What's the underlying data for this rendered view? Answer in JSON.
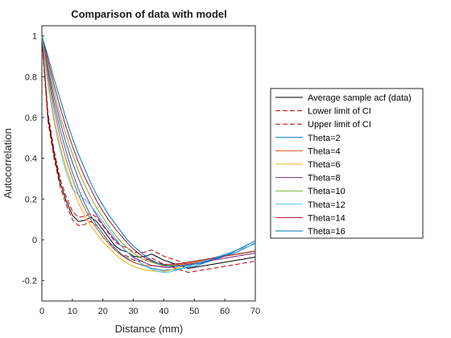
{
  "colors": {
    "data": "#000000",
    "ci": "#c00000",
    "theta2": "#0072BD",
    "theta4": "#D95319",
    "theta6": "#EDB120",
    "theta8": "#7E2F8E",
    "theta10": "#77AC30",
    "theta12": "#4DBEEE",
    "theta14": "#A2142F",
    "theta16": "#0072BD"
  },
  "chart_data": {
    "type": "line",
    "title": "Comparison of data with model",
    "xlabel": "Distance (mm)",
    "ylabel": "Autocorrelation",
    "xlim": [
      0,
      70
    ],
    "ylim": [
      -0.3,
      1.05
    ],
    "xticks": [
      0,
      10,
      20,
      30,
      40,
      50,
      60,
      70
    ],
    "yticks": [
      -0.2,
      0,
      0.2,
      0.4,
      0.6,
      0.8,
      1
    ],
    "ytick_labels": [
      "-0.2",
      "0",
      "0.2",
      "0.4",
      "0.6",
      "0.8",
      "1"
    ],
    "grid": false,
    "legend_position": "outside-right",
    "x": [
      0,
      2,
      4,
      6,
      8,
      10,
      12,
      14,
      16,
      18,
      20,
      22,
      24,
      26,
      28,
      30,
      32,
      34,
      36,
      38,
      40,
      42,
      44,
      46,
      48,
      50,
      52,
      54,
      56,
      58,
      60,
      62,
      64,
      66,
      68,
      70
    ],
    "series": [
      {
        "name": "Average sample acf (data)",
        "color_key": "data",
        "dash": "solid",
        "values": [
          1.0,
          0.6,
          0.42,
          0.28,
          0.19,
          0.12,
          0.09,
          0.095,
          0.11,
          0.09,
          0.05,
          0.01,
          -0.03,
          -0.05,
          -0.06,
          -0.08,
          -0.085,
          -0.08,
          -0.07,
          -0.085,
          -0.1,
          -0.11,
          -0.12,
          -0.13,
          -0.14,
          -0.135,
          -0.13,
          -0.125,
          -0.12,
          -0.115,
          -0.11,
          -0.105,
          -0.1,
          -0.095,
          -0.09,
          -0.085
        ]
      },
      {
        "name": "Lower limit of CI",
        "color_key": "ci",
        "dash": "dashed",
        "values": [
          0.98,
          0.58,
          0.4,
          0.26,
          0.17,
          0.1,
          0.07,
          0.075,
          0.09,
          0.07,
          0.03,
          -0.01,
          -0.05,
          -0.07,
          -0.08,
          -0.1,
          -0.105,
          -0.1,
          -0.09,
          -0.105,
          -0.12,
          -0.13,
          -0.14,
          -0.15,
          -0.16,
          -0.155,
          -0.15,
          -0.145,
          -0.14,
          -0.135,
          -0.13,
          -0.125,
          -0.12,
          -0.115,
          -0.11,
          -0.105
        ]
      },
      {
        "name": "Upper limit of CI",
        "color_key": "ci",
        "dash": "dashed",
        "values": [
          1.0,
          0.62,
          0.44,
          0.3,
          0.21,
          0.14,
          0.11,
          0.115,
          0.13,
          0.11,
          0.07,
          0.03,
          -0.01,
          -0.03,
          -0.04,
          -0.06,
          -0.065,
          -0.06,
          -0.05,
          -0.065,
          -0.08,
          -0.09,
          -0.1,
          -0.11,
          -0.12,
          -0.115,
          -0.11,
          -0.105,
          -0.1,
          -0.095,
          -0.09,
          -0.085,
          -0.08,
          -0.075,
          -0.07,
          -0.065
        ]
      },
      {
        "name": "Theta=2",
        "color_key": "theta2",
        "dash": "solid",
        "values": [
          1.0,
          0.82,
          0.67,
          0.54,
          0.43,
          0.33,
          0.25,
          0.18,
          0.12,
          0.07,
          0.03,
          -0.01,
          -0.04,
          -0.07,
          -0.09,
          -0.11,
          -0.12,
          -0.13,
          -0.14,
          -0.145,
          -0.15,
          -0.148,
          -0.145,
          -0.14,
          -0.135,
          -0.13,
          -0.12,
          -0.11,
          -0.1,
          -0.09,
          -0.08,
          -0.07,
          -0.06,
          -0.045,
          -0.03,
          -0.015
        ]
      },
      {
        "name": "Theta=4",
        "color_key": "theta4",
        "dash": "solid",
        "values": [
          1.0,
          0.8,
          0.64,
          0.5,
          0.39,
          0.3,
          0.22,
          0.155,
          0.1,
          0.055,
          0.015,
          -0.02,
          -0.05,
          -0.075,
          -0.095,
          -0.11,
          -0.12,
          -0.125,
          -0.128,
          -0.13,
          -0.13,
          -0.128,
          -0.125,
          -0.12,
          -0.115,
          -0.11,
          -0.105,
          -0.1,
          -0.09,
          -0.085,
          -0.08,
          -0.075,
          -0.07,
          -0.065,
          -0.06,
          -0.055
        ]
      },
      {
        "name": "Theta=6",
        "color_key": "theta6",
        "dash": "solid",
        "values": [
          1.0,
          0.78,
          0.6,
          0.46,
          0.35,
          0.26,
          0.18,
          0.12,
          0.07,
          0.03,
          -0.01,
          -0.04,
          -0.07,
          -0.095,
          -0.115,
          -0.13,
          -0.14,
          -0.148,
          -0.152,
          -0.155,
          -0.155,
          -0.15,
          -0.14,
          -0.13,
          -0.12,
          -0.11,
          -0.1,
          -0.095,
          -0.09,
          -0.085,
          -0.08,
          -0.075,
          -0.07,
          -0.065,
          -0.06,
          -0.055
        ]
      },
      {
        "name": "Theta=8",
        "color_key": "theta8",
        "dash": "solid",
        "values": [
          1.0,
          0.84,
          0.7,
          0.58,
          0.47,
          0.38,
          0.3,
          0.23,
          0.17,
          0.12,
          0.075,
          0.035,
          0.0,
          -0.03,
          -0.06,
          -0.085,
          -0.1,
          -0.115,
          -0.125,
          -0.13,
          -0.135,
          -0.135,
          -0.13,
          -0.125,
          -0.12,
          -0.115,
          -0.11,
          -0.105,
          -0.1,
          -0.095,
          -0.09,
          -0.085,
          -0.08,
          -0.075,
          -0.07,
          -0.065
        ]
      },
      {
        "name": "Theta=10",
        "color_key": "theta10",
        "dash": "solid",
        "values": [
          1.0,
          0.86,
          0.73,
          0.61,
          0.51,
          0.42,
          0.34,
          0.27,
          0.21,
          0.155,
          0.11,
          0.065,
          0.025,
          -0.01,
          -0.04,
          -0.065,
          -0.085,
          -0.1,
          -0.11,
          -0.12,
          -0.125,
          -0.125,
          -0.12,
          -0.115,
          -0.11,
          -0.105,
          -0.1,
          -0.095,
          -0.09,
          -0.085,
          -0.08,
          -0.075,
          -0.07,
          -0.065,
          -0.06,
          -0.055
        ]
      },
      {
        "name": "Theta=12",
        "color_key": "theta12",
        "dash": "solid",
        "values": [
          1.0,
          0.76,
          0.58,
          0.44,
          0.33,
          0.25,
          0.22,
          0.2,
          0.17,
          0.13,
          0.09,
          0.05,
          0.01,
          -0.03,
          -0.06,
          -0.09,
          -0.11,
          -0.13,
          -0.145,
          -0.155,
          -0.16,
          -0.158,
          -0.15,
          -0.14,
          -0.13,
          -0.12,
          -0.11,
          -0.1,
          -0.09,
          -0.08,
          -0.07,
          -0.06,
          -0.05,
          -0.04,
          -0.03,
          -0.02
        ]
      },
      {
        "name": "Theta=14",
        "color_key": "theta14",
        "dash": "solid",
        "values": [
          1.0,
          0.88,
          0.76,
          0.65,
          0.55,
          0.46,
          0.38,
          0.31,
          0.25,
          0.19,
          0.14,
          0.095,
          0.055,
          0.02,
          -0.015,
          -0.045,
          -0.07,
          -0.09,
          -0.105,
          -0.115,
          -0.12,
          -0.12,
          -0.118,
          -0.115,
          -0.11,
          -0.105,
          -0.1,
          -0.095,
          -0.09,
          -0.085,
          -0.08,
          -0.075,
          -0.07,
          -0.065,
          -0.06,
          -0.055
        ]
      },
      {
        "name": "Theta=16",
        "color_key": "theta16",
        "dash": "solid",
        "values": [
          1.0,
          0.9,
          0.79,
          0.69,
          0.59,
          0.5,
          0.42,
          0.35,
          0.28,
          0.22,
          0.17,
          0.12,
          0.08,
          0.04,
          0.0,
          -0.03,
          -0.055,
          -0.08,
          -0.1,
          -0.115,
          -0.125,
          -0.13,
          -0.13,
          -0.128,
          -0.125,
          -0.12,
          -0.115,
          -0.105,
          -0.095,
          -0.085,
          -0.075,
          -0.065,
          -0.05,
          -0.035,
          -0.02,
          -0.005
        ]
      }
    ]
  }
}
